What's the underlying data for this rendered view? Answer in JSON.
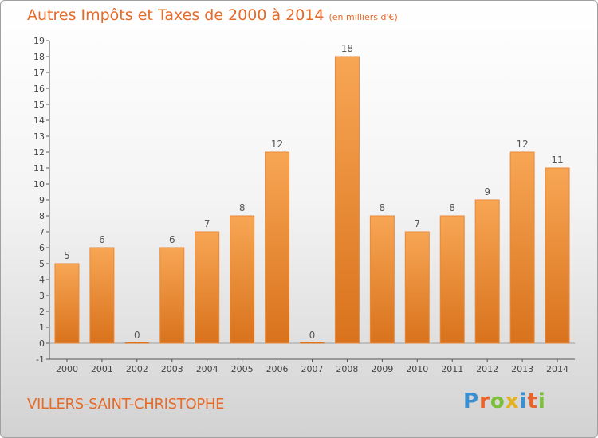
{
  "header": {
    "title": "Autres Impôts et Taxes de 2000 à 2014",
    "unit": "(en milliers d'€)"
  },
  "footer": {
    "commune": "VILLERS-SAINT-CHRISTOPHE",
    "brand_letters": [
      "P",
      "r",
      "o",
      "x",
      "i",
      "t",
      "i"
    ],
    "brand_colors": [
      "#3a8fd0",
      "#e8642a",
      "#7bbf3a",
      "#e3b21c",
      "#3a8fd0",
      "#e8642a",
      "#7bbf3a"
    ]
  },
  "colors": {
    "bar_light": "#f7a654",
    "bar_dark": "#d9721c",
    "title": "#e46b2a",
    "axis": "#555555",
    "grid": "#cfcfcf"
  },
  "chart_data": {
    "type": "bar",
    "title": "Autres Impôts et Taxes de 2000 à 2014",
    "subtitle": "(en milliers d'€)",
    "xlabel": "",
    "ylabel": "",
    "categories": [
      "2000",
      "2001",
      "2002",
      "2003",
      "2004",
      "2005",
      "2006",
      "2007",
      "2008",
      "2009",
      "2010",
      "2011",
      "2012",
      "2013",
      "2014"
    ],
    "values": [
      5,
      6,
      0,
      6,
      7,
      8,
      12,
      0,
      18,
      8,
      7,
      8,
      9,
      12,
      11
    ],
    "data_labels": [
      "5",
      "6",
      "0",
      "6",
      "7",
      "8",
      "12",
      "0",
      "18",
      "8",
      "7",
      "8",
      "9",
      "12",
      "11"
    ],
    "ylim": [
      -1,
      19
    ],
    "yticks": [
      "-1",
      "0",
      "1",
      "2",
      "3",
      "4",
      "5",
      "6",
      "7",
      "8",
      "9",
      "10",
      "11",
      "12",
      "13",
      "14",
      "15",
      "16",
      "17",
      "18",
      "19"
    ],
    "grid": false,
    "legend": "none"
  }
}
